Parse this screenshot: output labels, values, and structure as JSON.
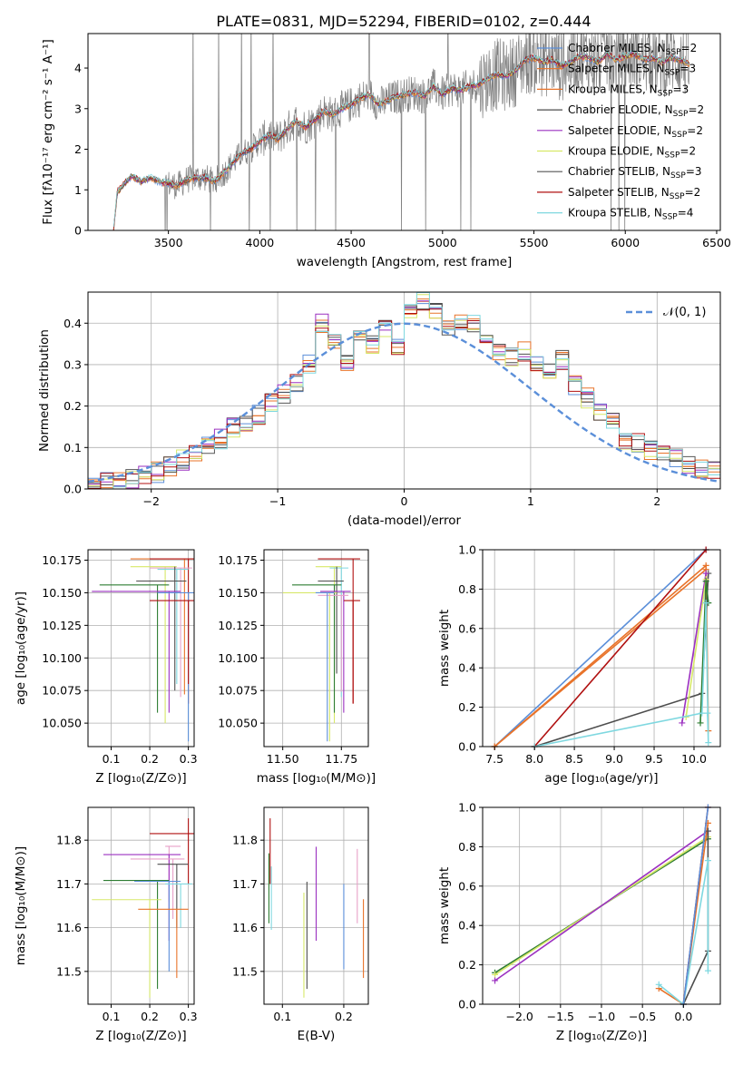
{
  "figure_title": "PLATE=0831, MJD=52294, FIBERID=0102, z=0.444",
  "colors": {
    "chabrier_miles": "#5b8fd9",
    "salpeter_miles": "#e8732a",
    "kroupa_miles": "#e8732a",
    "chabrier_elodie": "#4d4d4d",
    "salpeter_elodie": "#9b30c0",
    "kroupa_elodie": "#d7e868",
    "chabrier_stelib": "#555555",
    "salpeter_stelib": "#b01010",
    "kroupa_stelib": "#7fd8e0",
    "data": "#808080",
    "normal": "#5b8fd9"
  },
  "chart_data": [
    {
      "id": "spectrum",
      "type": "line",
      "title": "PLATE=0831, MJD=52294, FIBERID=0102, z=0.444",
      "xlabel": "wavelength [Angstrom, rest frame]",
      "ylabel": "Flux [fλ10⁻¹⁷ erg cm⁻² s⁻¹ A⁻¹]",
      "xlim": [
        3060,
        6520
      ],
      "ylim": [
        0,
        4.85
      ],
      "xticks": [
        3500,
        4000,
        4500,
        5000,
        5500,
        6000,
        6500
      ],
      "yticks": [
        0,
        1,
        2,
        3,
        4
      ],
      "grid": false,
      "legend_position": "top-right",
      "legend": [
        {
          "label": "Chabrier MILES, N_SSP=2",
          "color": "#5b8fd9"
        },
        {
          "label": "Salpeter MILES, N_SSP=3",
          "color": "#e8732a"
        },
        {
          "label": "Kroupa MILES, N_SSP=3",
          "color": "#e8732a"
        },
        {
          "label": "Chabrier ELODIE, N_SSP=2",
          "color": "#4d4d4d"
        },
        {
          "label": "Salpeter ELODIE, N_SSP=2",
          "color": "#9b30c0"
        },
        {
          "label": "Kroupa ELODIE, N_SSP=2",
          "color": "#d7e868"
        },
        {
          "label": "Chabrier STELIB, N_SSP=3",
          "color": "#555555"
        },
        {
          "label": "Salpeter STELIB, N_SSP=2",
          "color": "#b01010"
        },
        {
          "label": "Kroupa STELIB, N_SSP=4",
          "color": "#7fd8e0"
        }
      ],
      "continuum": {
        "x": [
          3200,
          3220,
          3250,
          3300,
          3350,
          3400,
          3450,
          3500,
          3550,
          3600,
          3650,
          3700,
          3750,
          3800,
          3850,
          3900,
          3950,
          4000,
          4050,
          4100,
          4150,
          4200,
          4250,
          4300,
          4350,
          4400,
          4450,
          4500,
          4550,
          4600,
          4650,
          4700,
          4750,
          4800,
          4850,
          4900,
          4950,
          5000,
          5050,
          5100,
          5150,
          5200,
          5250,
          5300,
          5350,
          5400,
          5450,
          5500,
          5550,
          5600,
          5650,
          5700,
          5750,
          5800,
          5850,
          5900,
          5950,
          6000,
          6050,
          6100,
          6150,
          6200,
          6250,
          6300,
          6350
        ],
        "y": [
          0.0,
          0.95,
          1.1,
          1.35,
          1.2,
          1.3,
          1.2,
          1.15,
          1.1,
          1.25,
          1.3,
          1.3,
          1.2,
          1.4,
          1.65,
          1.9,
          2.0,
          2.2,
          2.35,
          2.25,
          2.5,
          2.7,
          2.55,
          2.7,
          2.95,
          2.85,
          3.0,
          3.1,
          3.25,
          3.35,
          3.1,
          3.2,
          3.3,
          3.35,
          3.4,
          3.3,
          3.55,
          3.35,
          3.5,
          3.45,
          3.55,
          3.6,
          3.75,
          3.85,
          3.8,
          3.95,
          4.2,
          4.25,
          4.15,
          4.2,
          4.05,
          4.15,
          4.3,
          4.25,
          4.15,
          4.35,
          4.2,
          4.3,
          4.35,
          4.2,
          4.25,
          4.15,
          4.25,
          4.2,
          4.1
        ]
      }
    },
    {
      "id": "residuals",
      "type": "bar",
      "xlabel": "(data-model)/error",
      "ylabel": "Normed distribution",
      "xlim": [
        -2.5,
        2.5
      ],
      "ylim": [
        0,
        0.475
      ],
      "xticks": [
        -2,
        -1,
        0,
        1,
        2
      ],
      "yticks": [
        0.0,
        0.1,
        0.2,
        0.3,
        0.4
      ],
      "grid": true,
      "legend_position": "top-right",
      "legend": [
        {
          "label": "N(0,1)",
          "color": "#5b8fd9",
          "style": "dashed"
        }
      ],
      "bin_edges": [
        -2.5,
        -2.4,
        -2.3,
        -2.2,
        -2.1,
        -2.0,
        -1.9,
        -1.8,
        -1.7,
        -1.6,
        -1.5,
        -1.4,
        -1.3,
        -1.2,
        -1.1,
        -1.0,
        -0.9,
        -0.8,
        -0.7,
        -0.6,
        -0.5,
        -0.4,
        -0.3,
        -0.2,
        -0.1,
        0.0,
        0.1,
        0.2,
        0.3,
        0.4,
        0.5,
        0.6,
        0.7,
        0.8,
        0.9,
        1.0,
        1.1,
        1.2,
        1.3,
        1.4,
        1.5,
        1.6,
        1.7,
        1.8,
        1.9,
        2.0,
        2.1,
        2.2,
        2.3,
        2.4,
        2.5
      ],
      "hist": [
        0.01,
        0.015,
        0.02,
        0.025,
        0.03,
        0.04,
        0.055,
        0.07,
        0.09,
        0.1,
        0.12,
        0.15,
        0.16,
        0.18,
        0.21,
        0.23,
        0.26,
        0.3,
        0.4,
        0.35,
        0.3,
        0.37,
        0.35,
        0.39,
        0.34,
        0.42,
        0.45,
        0.43,
        0.39,
        0.4,
        0.4,
        0.35,
        0.33,
        0.32,
        0.33,
        0.31,
        0.28,
        0.31,
        0.25,
        0.22,
        0.19,
        0.16,
        0.12,
        0.11,
        0.095,
        0.08,
        0.075,
        0.06,
        0.05,
        0.045
      ]
    },
    {
      "id": "age_vs_Z",
      "type": "scatter",
      "xlabel": "Z [log₁₀(Z/Z⊙)]",
      "ylabel": "age  [log₁₀(age/yr)]",
      "xlim": [
        0.04,
        0.315
      ],
      "ylim": [
        10.032,
        10.183
      ],
      "xticks": [
        0.1,
        0.2,
        0.3
      ],
      "yticks": [
        10.05,
        10.075,
        10.1,
        10.125,
        10.15,
        10.175
      ],
      "grid": true,
      "errorbars": [
        {
          "x": 0.29,
          "y": 10.176,
          "xerr": 0.14,
          "ylo": 10.072,
          "yhi": 10.176,
          "color": "#e8732a"
        },
        {
          "x": 0.3,
          "y": 10.176,
          "xerr": 0.1,
          "ylo": 10.065,
          "yhi": 10.176,
          "color": "#b01010"
        },
        {
          "x": 0.24,
          "y": 10.17,
          "xerr": 0.09,
          "ylo": 10.05,
          "yhi": 10.17,
          "color": "#d7e868"
        },
        {
          "x": 0.28,
          "y": 10.169,
          "xerr": 0.08,
          "ylo": 10.07,
          "yhi": 10.169,
          "color": "#e8a0c8"
        },
        {
          "x": 0.27,
          "y": 10.168,
          "xerr": 0.05,
          "ylo": 10.08,
          "yhi": 10.168,
          "color": "#7fd8e0"
        },
        {
          "x": 0.265,
          "y": 10.159,
          "xerr": 0.1,
          "ylo": 10.075,
          "yhi": 10.17,
          "color": "#4d4d4d"
        },
        {
          "x": 0.22,
          "y": 10.156,
          "xerr": 0.15,
          "ylo": 10.058,
          "yhi": 10.156,
          "color": "#2e7d32"
        },
        {
          "x": 0.25,
          "y": 10.151,
          "xerr": 0.2,
          "ylo": 10.058,
          "yhi": 10.151,
          "color": "#9b30c0"
        },
        {
          "x": 0.3,
          "y": 10.15,
          "xerr": 0.08,
          "ylo": 10.036,
          "yhi": 10.15,
          "color": "#5b8fd9"
        },
        {
          "x": 0.3,
          "y": 10.144,
          "xerr": 0.1,
          "ylo": 10.08,
          "yhi": 10.144,
          "color": "#b01010"
        }
      ]
    },
    {
      "id": "age_vs_mass",
      "type": "scatter",
      "xlabel": "mass [log₁₀(M/M⊙)]",
      "ylabel": "",
      "xlim": [
        11.42,
        11.865
      ],
      "ylim": [
        10.032,
        10.183
      ],
      "xticks": [
        11.5,
        11.75
      ],
      "yticks": [
        10.05,
        10.075,
        10.1,
        10.125,
        10.15,
        10.175
      ],
      "grid": true,
      "errorbars": [
        {
          "x": 11.8,
          "y": 10.176,
          "xerr": 0.15,
          "ylo": 10.065,
          "yhi": 10.176,
          "color": "#b01010"
        },
        {
          "x": 11.72,
          "y": 10.17,
          "xerr": 0.08,
          "ylo": 10.05,
          "yhi": 10.17,
          "color": "#d7e868"
        },
        {
          "x": 11.75,
          "y": 10.169,
          "xerr": 0.05,
          "ylo": 10.07,
          "yhi": 10.169,
          "color": "#7fd8e0"
        },
        {
          "x": 11.73,
          "y": 10.159,
          "xerr": 0.08,
          "ylo": 10.088,
          "yhi": 10.17,
          "color": "#4d4d4d"
        },
        {
          "x": 11.72,
          "y": 10.156,
          "xerr": 0.18,
          "ylo": 10.058,
          "yhi": 10.156,
          "color": "#2e7d32"
        },
        {
          "x": 11.76,
          "y": 10.151,
          "xerr": 0.1,
          "ylo": 10.058,
          "yhi": 10.151,
          "color": "#9b30c0"
        },
        {
          "x": 11.7,
          "y": 10.15,
          "xerr": 0.2,
          "ylo": 10.036,
          "yhi": 10.15,
          "color": "#d7e868"
        },
        {
          "x": 11.75,
          "y": 10.148,
          "xerr": 0.1,
          "ylo": 10.074,
          "yhi": 10.148,
          "color": "#e8a0c8"
        },
        {
          "x": 11.8,
          "y": 10.144,
          "xerr": 0.04,
          "ylo": 10.065,
          "yhi": 10.144,
          "color": "#b01010"
        },
        {
          "x": 11.69,
          "y": 10.15,
          "xerr": 0.05,
          "ylo": 10.036,
          "yhi": 10.15,
          "color": "#5b8fd9"
        }
      ]
    },
    {
      "id": "weight_vs_age",
      "type": "line",
      "xlabel": "age  [log₁₀(age/yr)]",
      "ylabel": "mass weight",
      "xlim": [
        7.35,
        10.33
      ],
      "ylim": [
        0,
        1
      ],
      "xticks": [
        7.5,
        8.0,
        8.5,
        9.0,
        9.5,
        10.0
      ],
      "yticks": [
        0.0,
        0.2,
        0.4,
        0.6,
        0.8,
        1.0
      ],
      "grid": true,
      "series": [
        {
          "color": "#5b8fd9",
          "x": [
            7.5,
            10.15
          ],
          "y": [
            0.0,
            1.0
          ]
        },
        {
          "color": "#e8732a",
          "x": [
            7.5,
            10.15,
            10.18
          ],
          "y": [
            0.0,
            0.92,
            0.08
          ]
        },
        {
          "color": "#e8732a",
          "x": [
            7.5,
            10.15
          ],
          "y": [
            0.0,
            0.9
          ]
        },
        {
          "color": "#4d4d4d",
          "x": [
            8.0,
            10.1,
            10.18
          ],
          "y": [
            0.0,
            0.27,
            0.88
          ]
        },
        {
          "color": "#9b30c0",
          "x": [
            9.85,
            10.15
          ],
          "y": [
            0.12,
            0.88
          ]
        },
        {
          "color": "#d7e868",
          "x": [
            9.9,
            10.15
          ],
          "y": [
            0.15,
            0.85
          ]
        },
        {
          "color": "#2e7d32",
          "x": [
            10.08,
            10.15,
            10.18
          ],
          "y": [
            0.12,
            0.84,
            0.73
          ]
        },
        {
          "color": "#b01010",
          "x": [
            8.0,
            10.15
          ],
          "y": [
            0.0,
            1.0
          ]
        },
        {
          "color": "#7fd8e0",
          "x": [
            8.0,
            10.1,
            10.15,
            10.18,
            10.17
          ],
          "y": [
            0.0,
            0.17,
            0.73,
            0.02,
            0.17
          ]
        }
      ]
    },
    {
      "id": "mass_vs_Z",
      "type": "scatter",
      "xlabel": "Z [log₁₀(Z/Z⊙)]",
      "ylabel": "mass [log₁₀(M/M⊙)]",
      "xlim": [
        0.04,
        0.315
      ],
      "ylim": [
        11.425,
        11.875
      ],
      "xticks": [
        0.1,
        0.2,
        0.3
      ],
      "yticks": [
        11.5,
        11.6,
        11.7,
        11.8
      ],
      "grid": true,
      "errorbars": [
        {
          "x": 0.3,
          "y": 11.815,
          "xerr": 0.1,
          "ylo": 11.7,
          "yhi": 11.85,
          "color": "#b01010"
        },
        {
          "x": 0.25,
          "y": 11.786,
          "xerr": 0.01,
          "ylo": 11.66,
          "yhi": 11.786,
          "color": "#e8a0c8"
        },
        {
          "x": 0.25,
          "y": 11.767,
          "xerr": 0.17,
          "ylo": 11.57,
          "yhi": 11.767,
          "color": "#9b30c0"
        },
        {
          "x": 0.26,
          "y": 11.757,
          "xerr": 0.11,
          "ylo": 11.62,
          "yhi": 11.757,
          "color": "#e8a0c8"
        },
        {
          "x": 0.27,
          "y": 11.745,
          "xerr": 0.05,
          "ylo": 11.6,
          "yhi": 11.745,
          "color": "#4d4d4d"
        },
        {
          "x": 0.22,
          "y": 11.708,
          "xerr": 0.14,
          "ylo": 11.46,
          "yhi": 11.708,
          "color": "#2e7d32"
        },
        {
          "x": 0.25,
          "y": 11.706,
          "xerr": 0.09,
          "ylo": 11.5,
          "yhi": 11.706,
          "color": "#5b8fd9"
        },
        {
          "x": 0.28,
          "y": 11.7,
          "xerr": 0.04,
          "ylo": 11.6,
          "yhi": 11.7,
          "color": "#7fd8e0"
        },
        {
          "x": 0.2,
          "y": 11.664,
          "xerr": 0.15,
          "ylo": 11.44,
          "yhi": 11.664,
          "color": "#d7e868"
        },
        {
          "x": 0.27,
          "y": 11.642,
          "xerr": 0.1,
          "ylo": 11.485,
          "yhi": 11.642,
          "color": "#e8732a"
        }
      ]
    },
    {
      "id": "mass_vs_ebv",
      "type": "scatter",
      "xlabel": "E(B-V)",
      "ylabel": "",
      "xlim": [
        0.07,
        0.24
      ],
      "ylim": [
        11.425,
        11.875
      ],
      "xticks": [
        0.1,
        0.2
      ],
      "yticks": [
        11.5,
        11.6,
        11.7,
        11.8
      ],
      "grid": true,
      "errorbars": [
        {
          "x": 0.08,
          "ylo": 11.7,
          "yhi": 11.85,
          "color": "#b01010"
        },
        {
          "x": 0.078,
          "ylo": 11.61,
          "yhi": 11.77,
          "color": "#2e7d32"
        },
        {
          "x": 0.082,
          "ylo": 11.595,
          "yhi": 11.74,
          "color": "#7fd8e0"
        },
        {
          "x": 0.135,
          "ylo": 11.44,
          "yhi": 11.68,
          "color": "#d7e868"
        },
        {
          "x": 0.14,
          "ylo": 11.46,
          "yhi": 11.705,
          "color": "#4d4d4d"
        },
        {
          "x": 0.155,
          "ylo": 11.57,
          "yhi": 11.785,
          "color": "#9b30c0"
        },
        {
          "x": 0.2,
          "ylo": 11.505,
          "yhi": 11.7,
          "color": "#5b8fd9"
        },
        {
          "x": 0.222,
          "ylo": 11.61,
          "yhi": 11.78,
          "color": "#e8a0c8"
        },
        {
          "x": 0.232,
          "ylo": 11.485,
          "yhi": 11.665,
          "color": "#e8732a"
        }
      ]
    },
    {
      "id": "weight_vs_Z",
      "type": "line",
      "xlabel": "Z [log₁₀(Z/Z⊙)]",
      "ylabel": "mass weight",
      "xlim": [
        -2.45,
        0.45
      ],
      "ylim": [
        0,
        1
      ],
      "xticks": [
        -2.0,
        -1.5,
        -1.0,
        -0.5,
        0.0
      ],
      "yticks": [
        0.0,
        0.2,
        0.4,
        0.6,
        0.8,
        1.0
      ],
      "grid": true,
      "series": [
        {
          "color": "#2e7d32",
          "x": [
            -2.3,
            0.3
          ],
          "y": [
            0.16,
            0.84
          ]
        },
        {
          "color": "#d7e868",
          "x": [
            -2.3,
            0.3
          ],
          "y": [
            0.15,
            0.85
          ]
        },
        {
          "color": "#9b30c0",
          "x": [
            -2.3,
            0.3
          ],
          "y": [
            0.12,
            0.88
          ]
        },
        {
          "color": "#e8732a",
          "x": [
            -0.3,
            0.0,
            0.3
          ],
          "y": [
            0.08,
            0.0,
            0.92
          ]
        },
        {
          "color": "#b01010",
          "x": [
            0.0,
            0.3
          ],
          "y": [
            0.0,
            1.0
          ]
        },
        {
          "color": "#4d4d4d",
          "x": [
            0.0,
            0.3,
            0.3
          ],
          "y": [
            0.0,
            0.27,
            0.88
          ]
        },
        {
          "color": "#7fd8e0",
          "x": [
            -0.3,
            0.0,
            0.3,
            0.3
          ],
          "y": [
            0.1,
            0.0,
            0.73,
            0.17
          ]
        },
        {
          "color": "#5b8fd9",
          "x": [
            0.0,
            0.3
          ],
          "y": [
            0.0,
            1.0
          ]
        }
      ]
    }
  ]
}
